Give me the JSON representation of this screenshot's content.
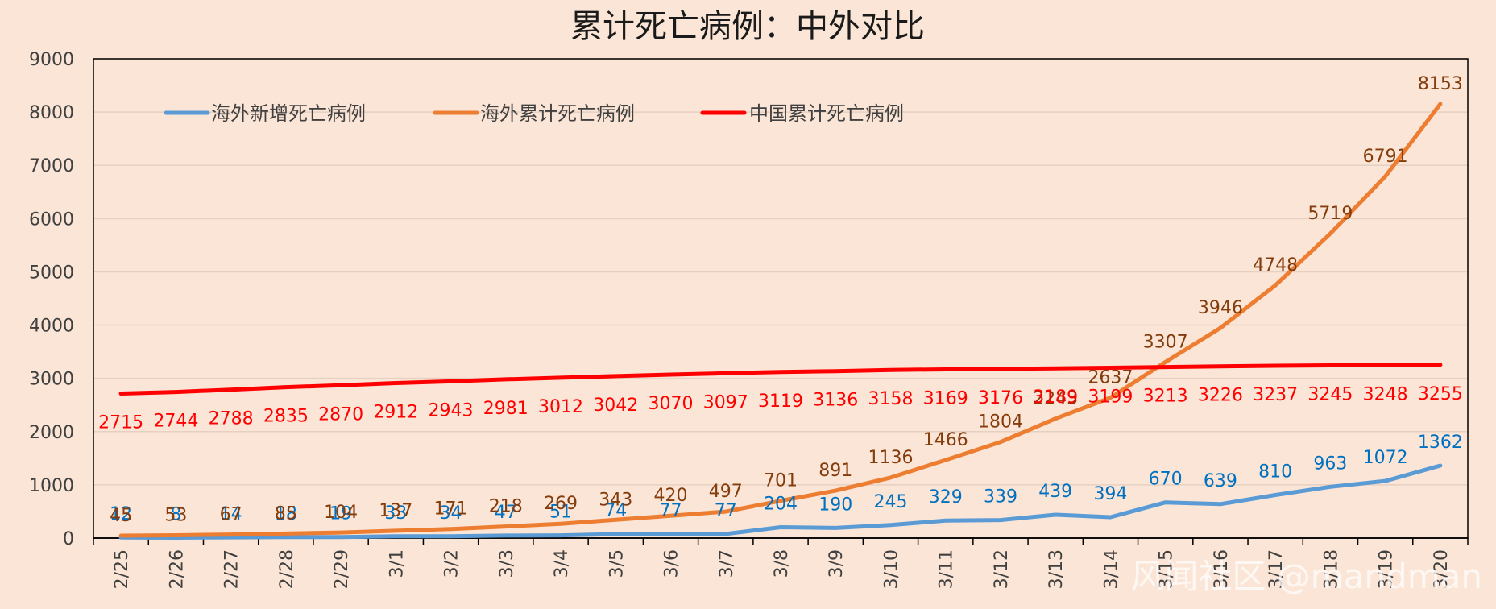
{
  "chart_data": {
    "type": "line",
    "title": "累计死亡病例：中外对比",
    "categories": [
      "2/25",
      "2/26",
      "2/27",
      "2/28",
      "2/29",
      "3/1",
      "3/2",
      "3/3",
      "3/4",
      "3/5",
      "3/6",
      "3/7",
      "3/8",
      "3/9",
      "3/10",
      "3/11",
      "3/12",
      "3/13",
      "3/14",
      "3/15",
      "3/16",
      "3/17",
      "3/18",
      "3/19",
      "3/20"
    ],
    "ylim": [
      0,
      9000
    ],
    "yticks": [
      "0",
      "1000",
      "2000",
      "3000",
      "4000",
      "5000",
      "6000",
      "7000",
      "8000",
      "9000"
    ],
    "grid": true,
    "legend_position": "top-left",
    "series": [
      {
        "name": "海外新增死亡病例",
        "color": "#5b9bd5",
        "label_color": "#0070c0",
        "values": [
          12,
          8,
          14,
          18,
          19,
          33,
          34,
          47,
          51,
          74,
          77,
          77,
          204,
          190,
          245,
          329,
          339,
          439,
          394,
          670,
          639,
          810,
          963,
          1072,
          1362
        ]
      },
      {
        "name": "海外累计死亡病例",
        "color": "#ed7d31",
        "label_color": "#843c0c",
        "values": [
          45,
          53,
          67,
          85,
          104,
          137,
          171,
          218,
          269,
          343,
          420,
          497,
          701,
          891,
          1136,
          1466,
          1804,
          2243,
          2637,
          3307,
          3946,
          4748,
          5719,
          6791,
          8153
        ]
      },
      {
        "name": "中国累计死亡病例",
        "color": "#ff0000",
        "label_color": "#ff0000",
        "values": [
          2715,
          2744,
          2788,
          2835,
          2870,
          2912,
          2943,
          2981,
          3012,
          3042,
          3070,
          3097,
          3119,
          3136,
          3158,
          3169,
          3176,
          3189,
          3199,
          3213,
          3226,
          3237,
          3245,
          3248,
          3255
        ]
      }
    ]
  },
  "watermark": "风闻社区 @mandman"
}
